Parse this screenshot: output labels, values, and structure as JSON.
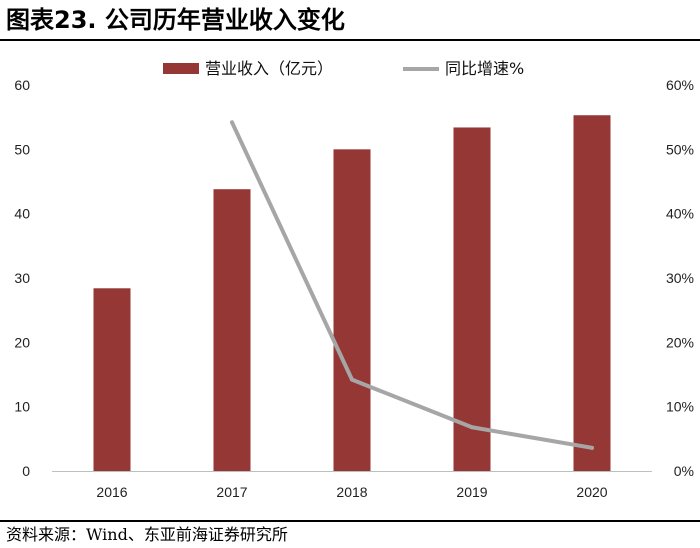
{
  "header": {
    "title": "图表23. 公司历年营业收入变化"
  },
  "footer": {
    "source": "资料来源：Wind、东亚前海证券研究所"
  },
  "chart_data": {
    "type": "bar",
    "categories": [
      "2016",
      "2017",
      "2018",
      "2019",
      "2020"
    ],
    "series": [
      {
        "name": "营业收入（亿元）",
        "type": "bar",
        "axis": "left",
        "values": [
          28.4,
          43.8,
          50.0,
          53.4,
          55.3
        ],
        "color": "#953735"
      },
      {
        "name": "同比增速%",
        "type": "line",
        "axis": "right",
        "values": [
          null,
          54.2,
          14.2,
          6.8,
          3.6
        ],
        "color": "#A6A6A6"
      }
    ],
    "ylim_left": [
      0,
      60
    ],
    "yticks_left": [
      "0",
      "10",
      "20",
      "30",
      "40",
      "50",
      "60"
    ],
    "ylim_right": [
      0,
      60
    ],
    "yticks_right": [
      "0%",
      "10%",
      "20%",
      "30%",
      "40%",
      "50%",
      "60%"
    ],
    "grid": false,
    "legend": "top-center"
  }
}
